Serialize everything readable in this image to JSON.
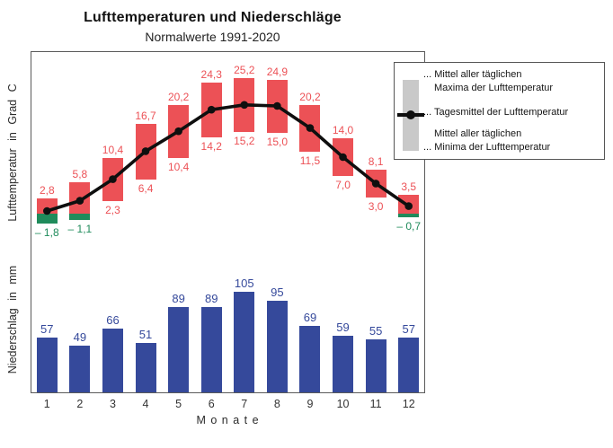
{
  "title": "Lufttemperaturen und Niederschläge",
  "subtitle": "Normalwerte 1991-2020",
  "axes": {
    "temperature_label": "Lufttemperatur in Grad C",
    "precipitation_label": "Niederschlag in mm",
    "months_axis_label": "M o n a t e"
  },
  "legend": {
    "lines": [
      "... Mittel aller täglichen",
      "Maxima der Lufttemperatur",
      "... Tagesmittel der Lufttemperatur",
      "Mittel aller täglichen",
      "... Minima der Lufttemperatur"
    ]
  },
  "colors": {
    "max_bar": "#ec5156",
    "min_bar_negative": "#1f8b5b",
    "precip_bar": "#35499b",
    "mean_line": "#0f0f0f",
    "legend_swatch": "#c9c9c9",
    "frame": "#5a5a5a"
  },
  "chart_data": [
    {
      "type": "bar",
      "name": "temperature",
      "title": "Lufttemperaturen",
      "ylabel": "Lufttemperatur in Grad C",
      "categories": [
        1,
        2,
        3,
        4,
        5,
        6,
        7,
        8,
        9,
        10,
        11,
        12
      ],
      "series": [
        {
          "name": "Mittel aller täglichen Maxima der Lufttemperatur",
          "values": [
            2.8,
            5.8,
            10.4,
            16.7,
            20.2,
            24.3,
            25.2,
            24.9,
            20.2,
            14.0,
            8.1,
            3.5
          ],
          "labels": [
            "2,8",
            "5,8",
            "10,4",
            "16,7",
            "20,2",
            "24,3",
            "25,2",
            "24,9",
            "20,2",
            "14,0",
            "8,1",
            "3,5"
          ]
        },
        {
          "name": "Mittel aller täglichen Minima der Lufttemperatur",
          "values": [
            -1.8,
            -1.1,
            2.3,
            6.4,
            10.4,
            14.2,
            15.2,
            15.0,
            11.5,
            7.0,
            3.0,
            -0.7
          ],
          "labels": [
            "– 1,8",
            "– 1,1",
            "2,3",
            "6,4",
            "10,4",
            "14,2",
            "15,2",
            "15,0",
            "11,5",
            "7,0",
            "3,0",
            "– 0,7"
          ]
        },
        {
          "name": "Tagesmittel der Lufttemperatur",
          "type": "line",
          "values": [
            0.5,
            2.4,
            6.4,
            11.6,
            15.3,
            19.3,
            20.2,
            20.0,
            15.9,
            10.5,
            5.6,
            1.4
          ]
        }
      ],
      "ylim": [
        -5,
        30
      ],
      "grid": false,
      "legend_position": "right-outside"
    },
    {
      "type": "bar",
      "name": "precipitation",
      "title": "Niederschläge",
      "ylabel": "Niederschlag in mm",
      "xlabel": "Monate",
      "categories": [
        1,
        2,
        3,
        4,
        5,
        6,
        7,
        8,
        9,
        10,
        11,
        12
      ],
      "values": [
        57,
        49,
        66,
        51,
        89,
        89,
        105,
        95,
        69,
        59,
        55,
        57
      ],
      "ylim": [
        0,
        120
      ],
      "grid": false
    }
  ]
}
